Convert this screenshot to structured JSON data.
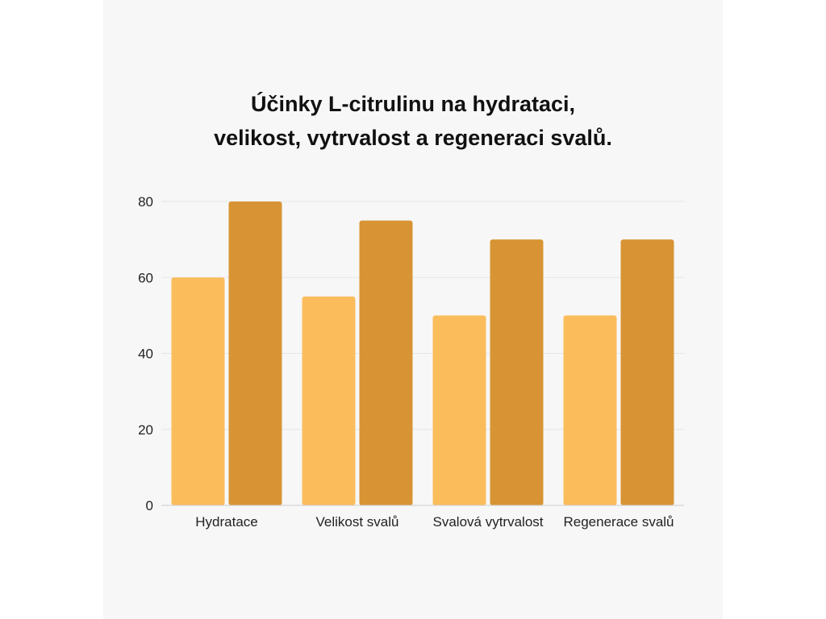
{
  "chart_data": {
    "type": "bar",
    "title_lines": [
      "Účinky L-citrulinu na hydrataci,",
      "velikost, vytrvalost a regeneraci svalů."
    ],
    "categories": [
      "Hydratace",
      "Velikost svalů",
      "Svalová vytrvalost",
      "Regenerace svalů"
    ],
    "series": [
      {
        "values": [
          60,
          55,
          50,
          50
        ],
        "color": "#fbbd5c"
      },
      {
        "values": [
          80,
          75,
          70,
          70
        ],
        "color": "#d89434"
      }
    ],
    "ylim": [
      0,
      80
    ],
    "yticks": [
      0,
      20,
      40,
      60,
      80
    ],
    "grid": true,
    "colors": {
      "background": "#f7f7f7",
      "grid": "#e6e6e6",
      "axis": "#cccccc",
      "text": "#222222"
    }
  }
}
